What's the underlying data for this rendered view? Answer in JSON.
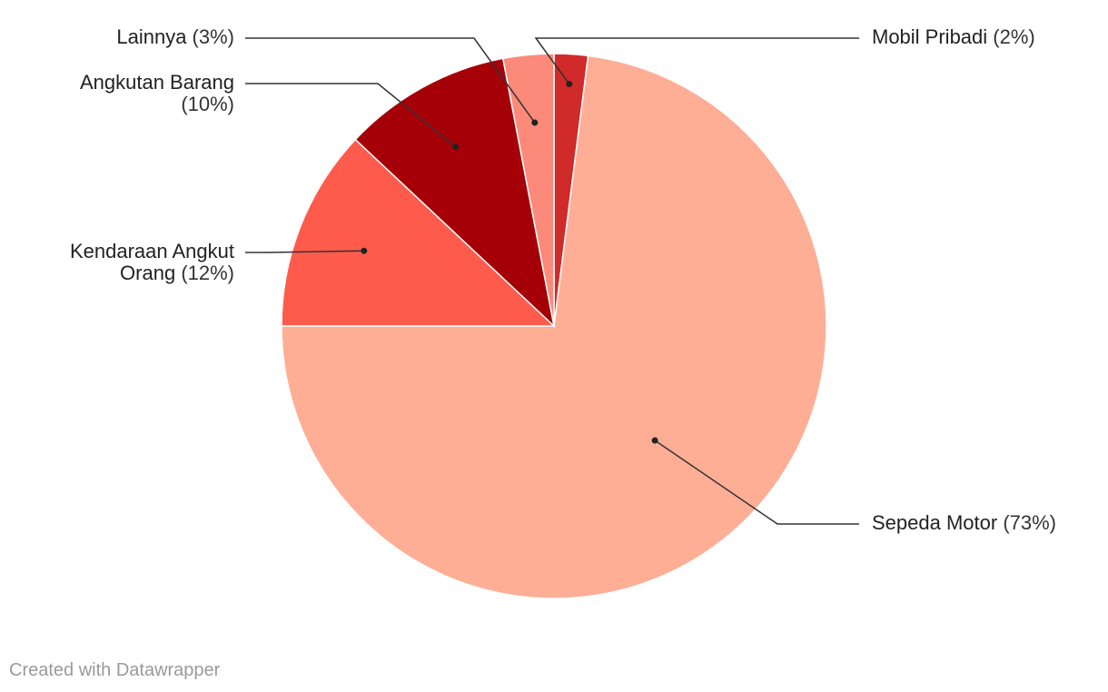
{
  "chart_data": {
    "type": "pie",
    "slices": [
      {
        "label": "Mobil Pribadi",
        "value": 2,
        "pct_text": "(2%)",
        "color": "#d12a2a"
      },
      {
        "label": "Sepeda Motor",
        "value": 73,
        "pct_text": "(73%)",
        "color": "#feae95"
      },
      {
        "label": "Kendaraan Angkut Orang",
        "label_lines": [
          "Kendaraan Angkut",
          "Orang"
        ],
        "value": 12,
        "pct_text": "(12%)",
        "color": "#fe5b4c"
      },
      {
        "label": "Angkutan Barang",
        "label_lines": [
          "Angkutan Barang"
        ],
        "value": 10,
        "pct_text": "(10%)",
        "color": "#a50007"
      },
      {
        "label": "Lainnya",
        "value": 3,
        "pct_text": "(3%)",
        "color": "#fc8a7a"
      }
    ],
    "start": "12 o'clock",
    "direction": "clockwise"
  },
  "footer": {
    "credit": "Created with Datawrapper"
  }
}
